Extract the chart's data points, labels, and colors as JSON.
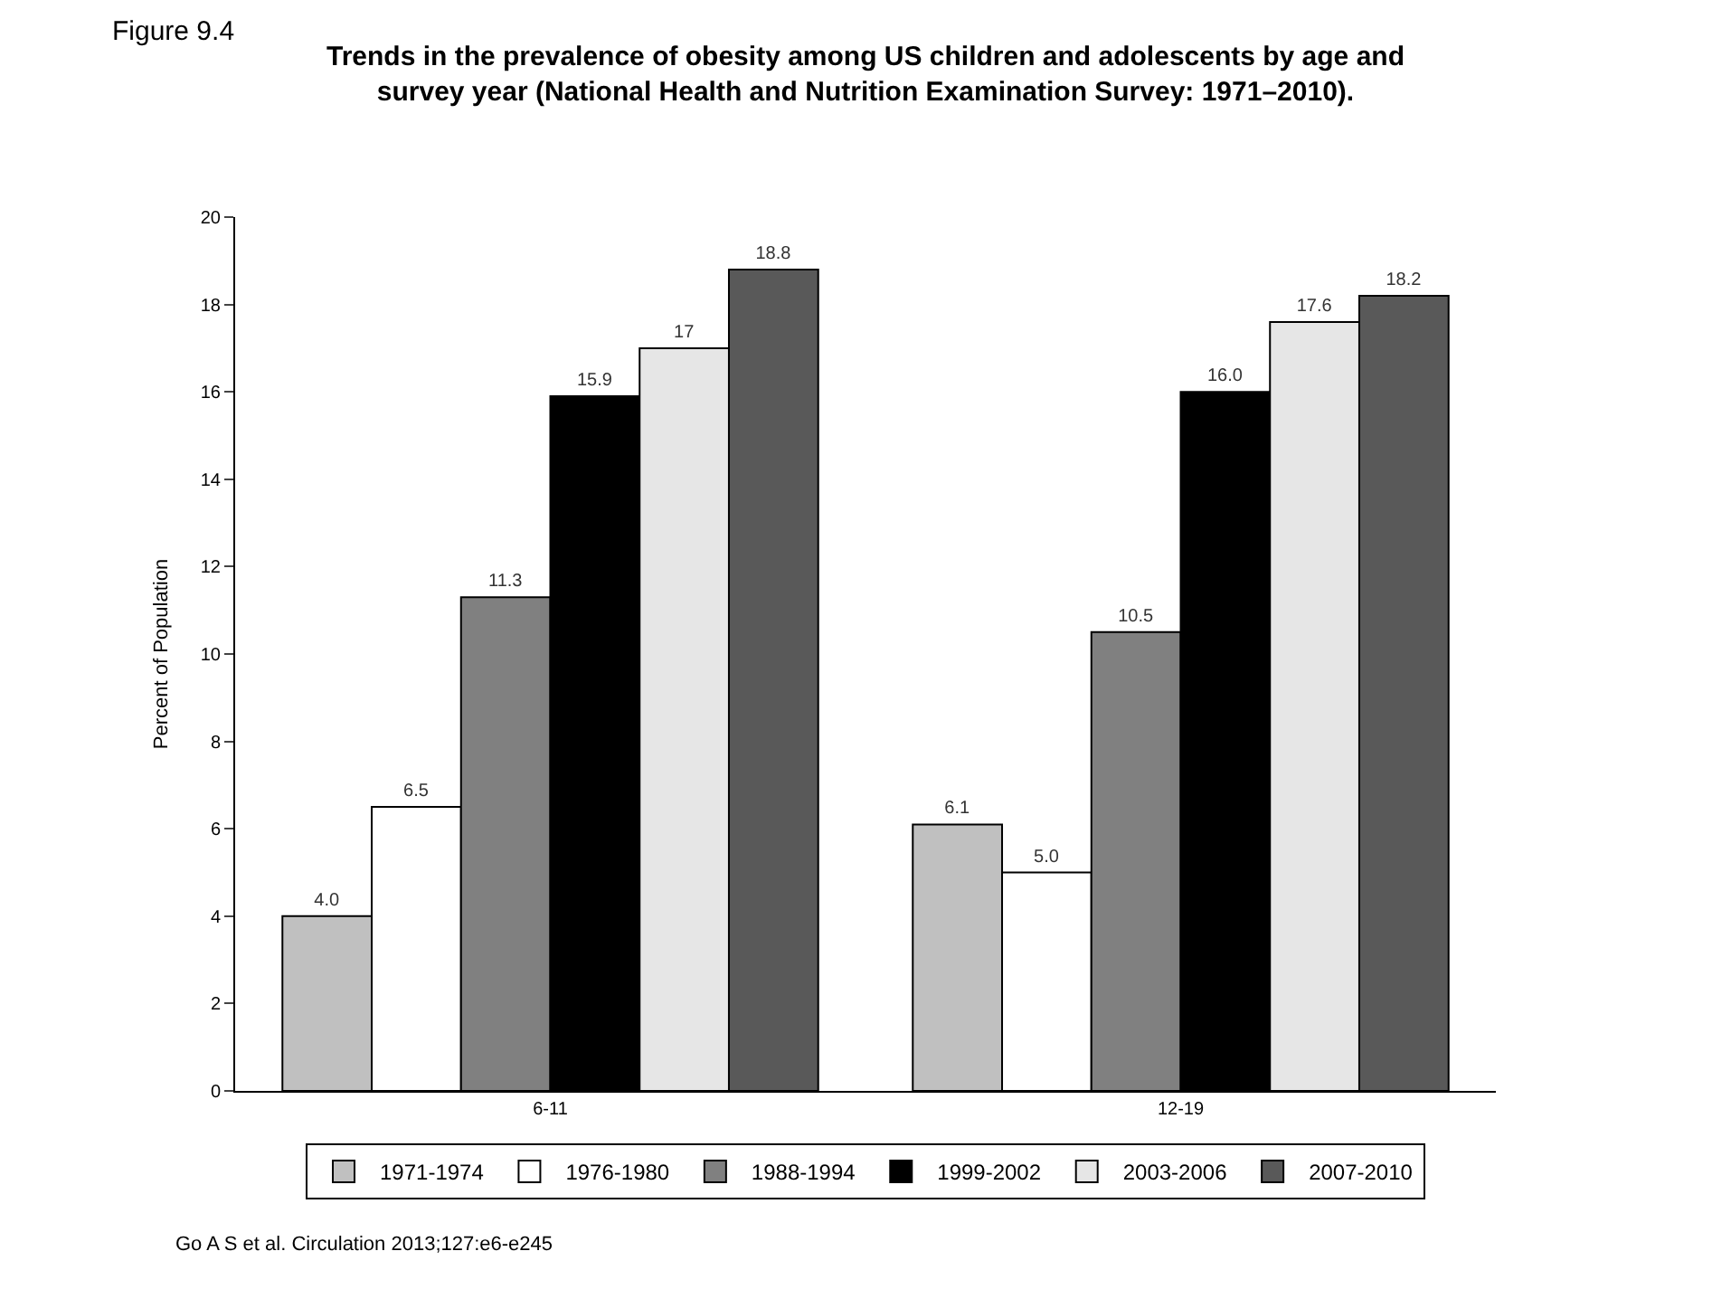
{
  "chart_data": {
    "type": "bar",
    "title": "Trends in the prevalence of obesity among US children and adolescents by age and survey year (National Health and Nutrition Examination Survey: 1971–2010).",
    "ylabel": "Percent of Population",
    "categories": [
      "6-11",
      "12-19"
    ],
    "series": [
      {
        "name": "1971-1974",
        "color": "#c0c0c0",
        "values": [
          4.0,
          6.1
        ],
        "value_labels": [
          "4.0",
          "6.1"
        ]
      },
      {
        "name": "1976-1980",
        "color": "#ffffff",
        "values": [
          6.5,
          5.0
        ],
        "value_labels": [
          "6.5",
          "5.0"
        ]
      },
      {
        "name": "1988-1994",
        "color": "#808080",
        "values": [
          11.3,
          10.5
        ],
        "value_labels": [
          "11.3",
          "10.5"
        ]
      },
      {
        "name": "1999-2002",
        "color": "#000000",
        "values": [
          15.9,
          16.0
        ],
        "value_labels": [
          "15.9",
          "16.0"
        ]
      },
      {
        "name": "2003-2006",
        "color": "#e6e6e6",
        "values": [
          17,
          17.6
        ],
        "value_labels": [
          "17",
          "17.6"
        ]
      },
      {
        "name": "2007-2010",
        "color": "#595959",
        "values": [
          18.8,
          18.2
        ],
        "value_labels": [
          "18.8",
          "18.2"
        ]
      }
    ],
    "ylim": [
      0,
      20
    ],
    "yticks": [
      0,
      2,
      4,
      6,
      8,
      10,
      12,
      14,
      16,
      18,
      20
    ],
    "legend": "bottom",
    "annotations": [
      "Figure 9.4",
      "Go A S et al. Circulation 2013;127:e6-e245"
    ]
  }
}
